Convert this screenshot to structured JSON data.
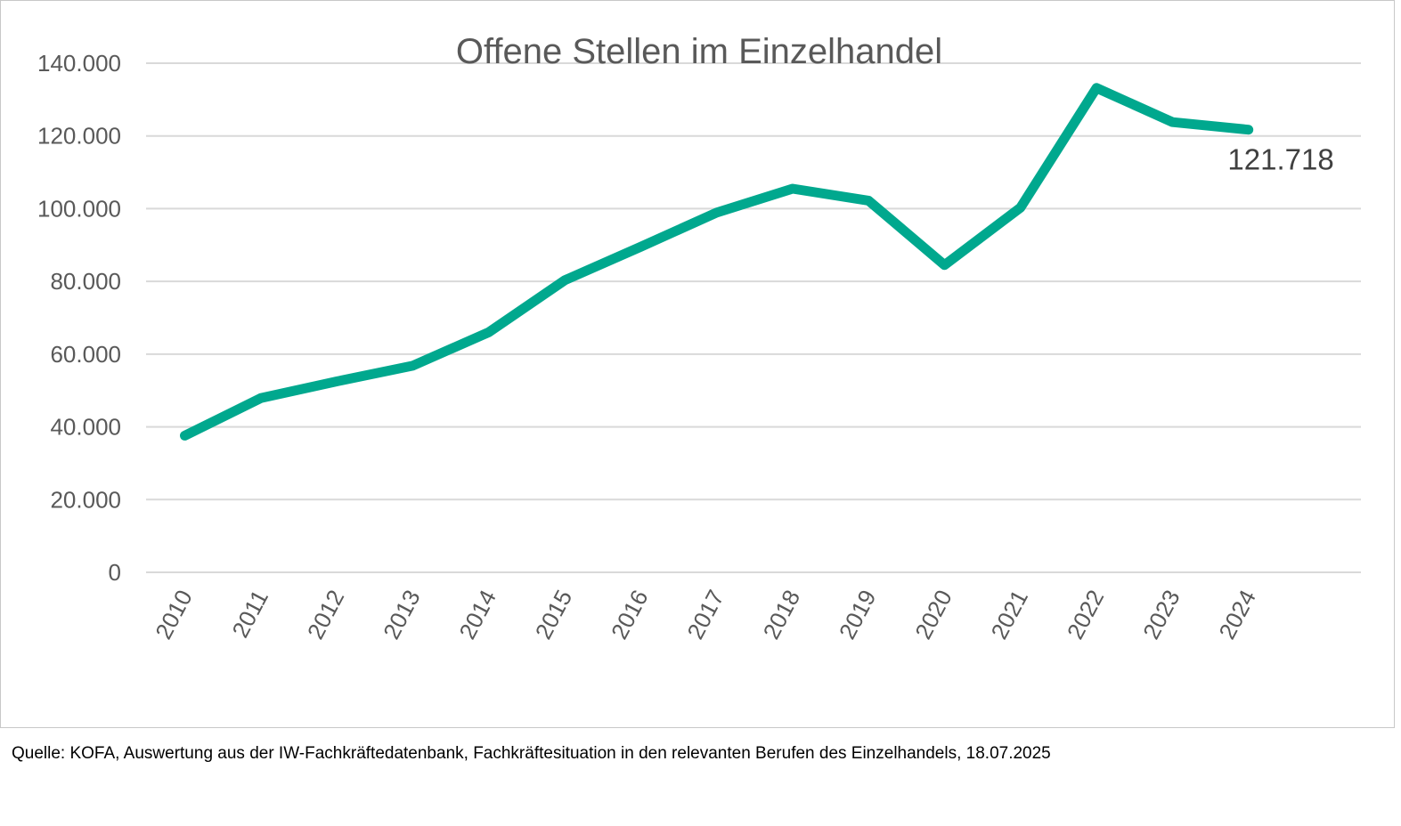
{
  "chart_data": {
    "type": "line",
    "title": "Offene Stellen im Einzelhandel",
    "xlabel": "",
    "ylabel": "",
    "categories": [
      "2010",
      "2011",
      "2012",
      "2013",
      "2014",
      "2015",
      "2016",
      "2017",
      "2018",
      "2019",
      "2020",
      "2021",
      "2022",
      "2023",
      "2024"
    ],
    "series": [
      {
        "values": [
          37600,
          47900,
          52500,
          56800,
          66000,
          80300,
          89500,
          98900,
          105500,
          102200,
          84500,
          100300,
          133200,
          123800,
          121718
        ]
      }
    ],
    "ylim": [
      0,
      140000
    ],
    "yticks": [
      0,
      20000,
      40000,
      60000,
      80000,
      100000,
      120000,
      140000
    ],
    "ytick_labels": [
      "0",
      "20.000",
      "40.000",
      "60.000",
      "80.000",
      "100.000",
      "120.000",
      "140.000"
    ],
    "data_labels": [
      {
        "category": "2024",
        "text": "121.718"
      }
    ],
    "grid": true,
    "legend": "none",
    "line_color": "#00A88E",
    "grid_color": "#D9D9D9",
    "text_color": "#595959"
  },
  "source_note": "Quelle: KOFA, Auswertung aus der IW-Fachkräftedatenbank, Fachkräftesituation in den relevanten Berufen des Einzelhandels, 18.07.2025"
}
